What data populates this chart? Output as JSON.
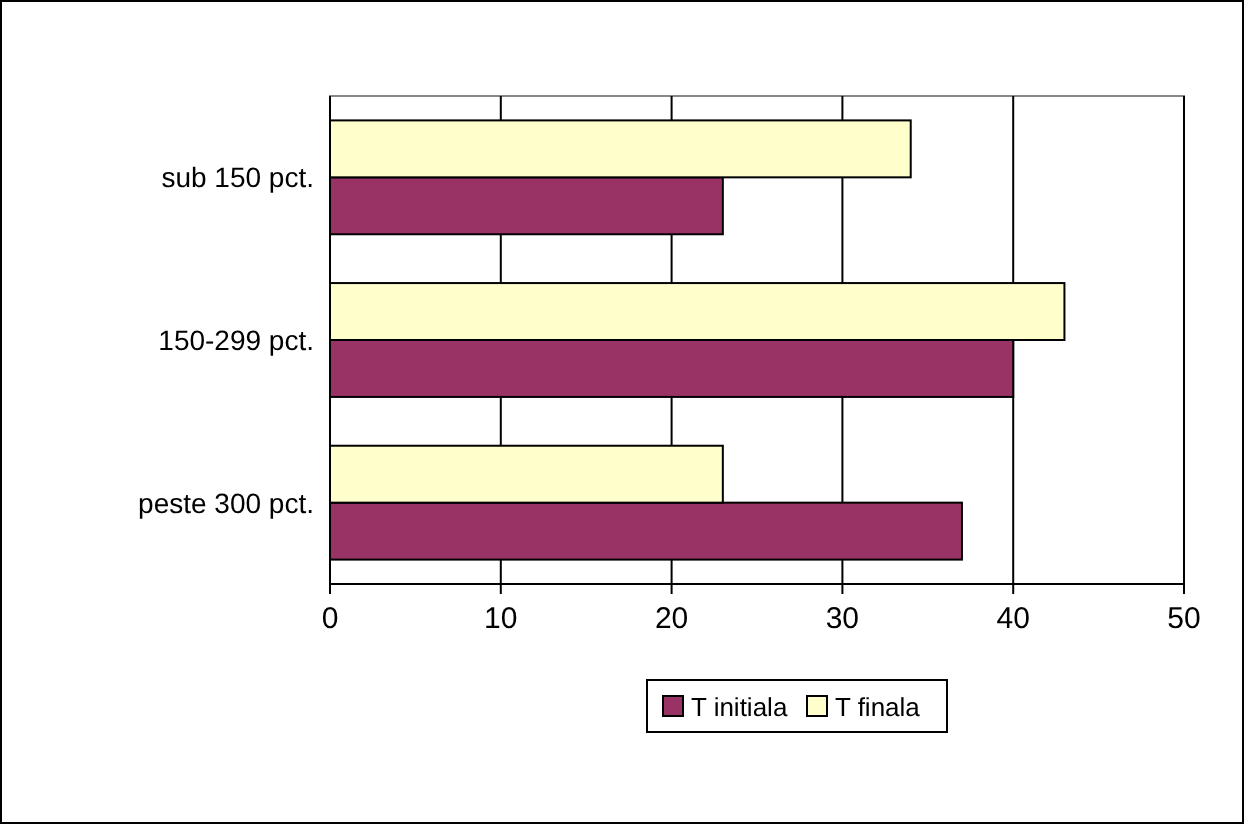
{
  "chart_data": {
    "type": "bar",
    "orientation": "horizontal",
    "categories": [
      "sub 150 pct.",
      "150-299 pct.",
      "peste 300 pct."
    ],
    "series": [
      {
        "name": "T initiala",
        "color": "#993366",
        "values": [
          23,
          40,
          37
        ]
      },
      {
        "name": "T finala",
        "color": "#ffffcc",
        "values": [
          34,
          43,
          23
        ]
      }
    ],
    "xlim": [
      0,
      50
    ],
    "xticks": [
      0,
      10,
      20,
      30,
      40,
      50
    ],
    "grid": "x",
    "legend": "bottom"
  }
}
